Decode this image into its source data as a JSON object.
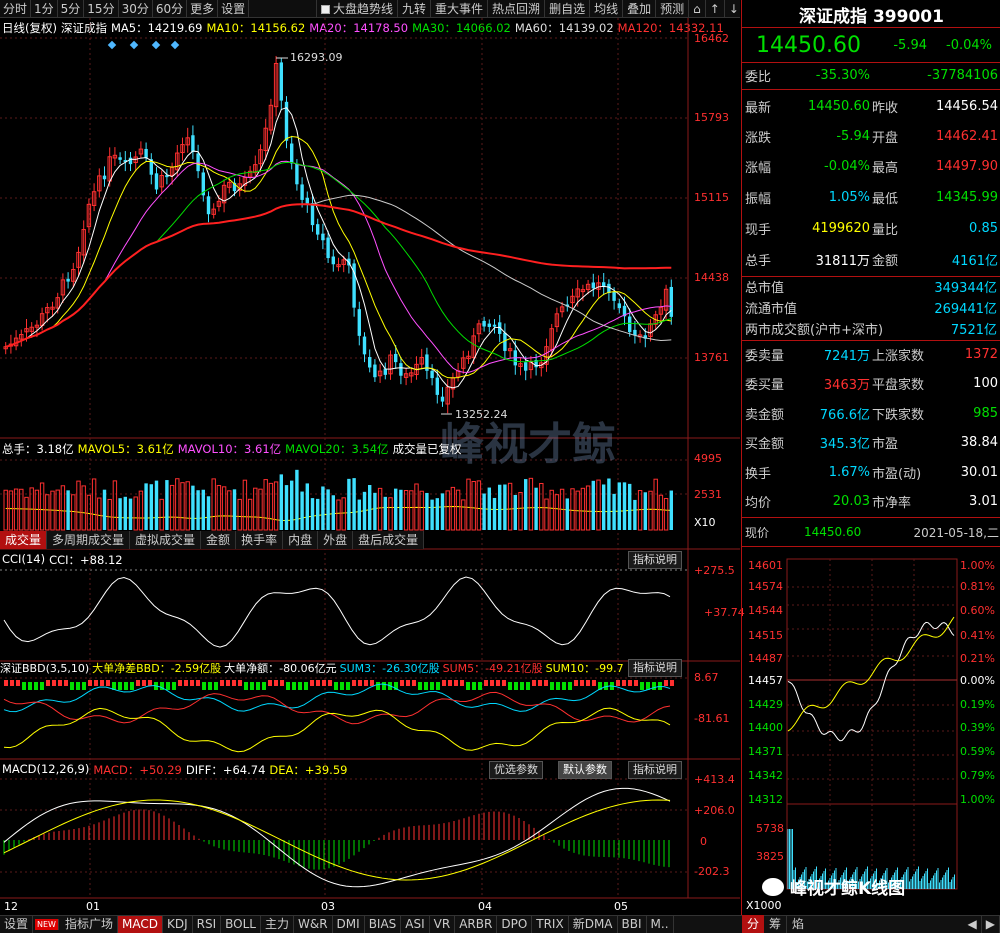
{
  "toolbar": {
    "periods": [
      "分时",
      "1分",
      "5分",
      "15分",
      "30分",
      "60分",
      "更多",
      "设置"
    ],
    "overlays": [
      "大盘趋势线",
      "九转",
      "重大事件",
      "热点回溯",
      "删自选",
      "均线",
      "叠加",
      "预测"
    ]
  },
  "main_info": {
    "label": "日线(复权)",
    "name": "深证成指",
    "ma5": "MA5：14219.69",
    "ma10": "MA10：14156.62",
    "ma20": "MA20：14178.50",
    "ma30": "MA30：14066.02",
    "ma60": "MA60：14139.02",
    "ma120": "MA120：14332.11"
  },
  "price_axis": [
    "16462",
    "15793",
    "15115",
    "14438",
    "13761"
  ],
  "price_marks": {
    "high": "16293.09",
    "low": "13252.24"
  },
  "vol_info": {
    "total": "总手：3.18亿",
    "mavol5": "MAVOL5：3.61亿",
    "mavol10": "MAVOL10：3.61亿",
    "mavol20": "MAVOL20：3.54亿",
    "note": "成交量已复权"
  },
  "vol_axis": [
    "4995",
    "2531",
    "X10"
  ],
  "panel_tabs": [
    "成交量",
    "多周期成交量",
    "虚拟成交量",
    "金额",
    "换手率",
    "内盘",
    "外盘",
    "盘后成交量"
  ],
  "cci": {
    "label": "CCI(14)",
    "value": "CCI：+88.12",
    "btn": "指标说明",
    "axis": [
      "+275.5",
      "+37.74"
    ]
  },
  "bbd": {
    "label": "深证BBD(3,5,10)",
    "net_bbd": "大单净差BBD：-2.59亿股",
    "net_amt": "大单净额：-80.06亿元",
    "sum3": "SUM3：-26.30亿股",
    "sum5": "SUM5：-49.21亿股",
    "sum10": "SUM10：-99.7",
    "btn": "指标说明",
    "axis": [
      "8.67",
      "-81.61"
    ]
  },
  "macd": {
    "label": "MACD(12,26,9)",
    "macd": "MACD：+50.29",
    "diff": "DIFF：+64.74",
    "dea": "DEA：+39.59",
    "btns": [
      "优选参数",
      "默认参数",
      "指标说明"
    ],
    "axis": [
      "+413.4",
      "+206.0",
      "0",
      "-202.3"
    ]
  },
  "months": [
    "12",
    "01",
    "03",
    "04",
    "05"
  ],
  "bottom_tabs": [
    "设置",
    "NEW",
    "指标广场",
    "MACD",
    "KDJ",
    "RSI",
    "BOLL",
    "主力",
    "W&R",
    "DMI",
    "BIAS",
    "ASI",
    "VR",
    "ARBR",
    "DPO",
    "TRIX",
    "新DMA",
    "BBI",
    "M.."
  ],
  "bottom_right": [
    "分",
    "筹",
    "焰"
  ],
  "quote": {
    "title": "深证成指 399001",
    "price": "14450.60",
    "change": "-5.94",
    "pct": "-0.04%",
    "weibi_label": "委比",
    "weibi": "-35.30%",
    "weicha": "-37784106",
    "rows": [
      {
        "k": "最新",
        "v": "14450.60",
        "k2": "昨收",
        "v2": "14456.54"
      },
      {
        "k": "涨跌",
        "v": "-5.94",
        "k2": "开盘",
        "v2": "14462.41"
      },
      {
        "k": "涨幅",
        "v": "-0.04%",
        "k2": "最高",
        "v2": "14497.90"
      },
      {
        "k": "振幅",
        "v": "1.05%",
        "k2": "最低",
        "v2": "14345.99"
      },
      {
        "k": "现手",
        "v": "4199620",
        "k2": "量比",
        "v2": "0.85"
      },
      {
        "k": "总手",
        "v": "31811万",
        "k2": "金额",
        "v2": "4161亿"
      }
    ],
    "mv": [
      {
        "k": "总市值",
        "v": "349344亿"
      },
      {
        "k": "流通市值",
        "v": "269441亿"
      },
      {
        "k": "两市成交额(沪市+深市)",
        "v": "7521亿"
      }
    ],
    "rows2": [
      {
        "k": "委卖量",
        "v": "7241万",
        "k2": "上涨家数",
        "v2": "1372"
      },
      {
        "k": "委买量",
        "v": "3463万",
        "k2": "平盘家数",
        "v2": "100"
      },
      {
        "k": "卖金额",
        "v": "766.6亿",
        "k2": "下跌家数",
        "v2": "985"
      },
      {
        "k": "买金额",
        "v": "345.3亿",
        "k2": "市盈",
        "v2": "38.84"
      },
      {
        "k": "换手",
        "v": "1.67%",
        "k2": "市盈(动)",
        "v2": "30.01"
      },
      {
        "k": "均价",
        "v": "20.03",
        "k2": "市净率",
        "v2": "3.01"
      }
    ],
    "now_label": "现价",
    "now": "14450.60",
    "date": "2021-05-18,二"
  },
  "intraday": {
    "left_axis": [
      "14601",
      "14574",
      "14544",
      "14515",
      "14487",
      "14457",
      "14429",
      "14400",
      "14371",
      "14342",
      "14312"
    ],
    "right_axis": [
      "1.00%",
      "0.81%",
      "0.60%",
      "0.41%",
      "0.21%",
      "0.00%",
      "0.19%",
      "0.39%",
      "0.59%",
      "0.79%",
      "1.00%"
    ],
    "vol_axis": [
      "5738",
      "3825",
      "X1000"
    ]
  },
  "watermark": {
    "main": "峰视才鲸",
    "sub": "峰视才鲸K线图"
  }
}
